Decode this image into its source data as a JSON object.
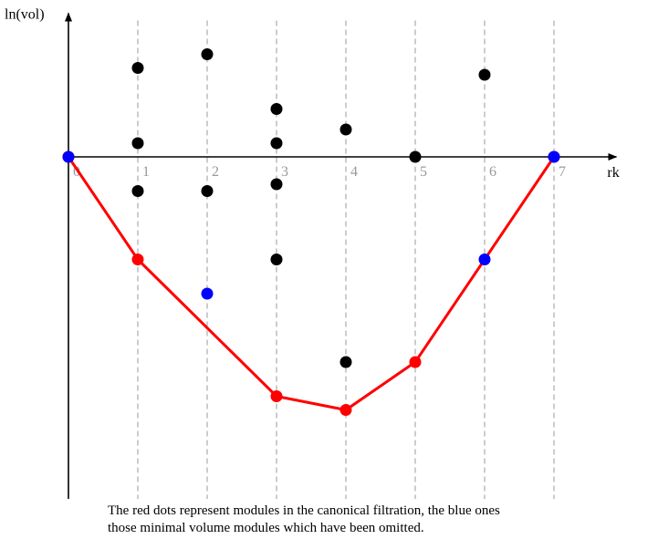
{
  "chart_data": {
    "type": "scatter",
    "xlabel": "rk",
    "ylabel": "ln(vol)",
    "xticks": [
      "0",
      "1",
      "2",
      "3",
      "4",
      "5",
      "6",
      "7"
    ],
    "xlim": [
      0,
      7.9
    ],
    "ylim": [
      -5,
      2.1
    ],
    "grid": "vertical dashed lines at each integer x",
    "colors": {
      "black": "#000000",
      "red": "#ff0000",
      "blue": "#0000ff",
      "grid": "#999999",
      "tick": "#999999"
    },
    "series": [
      {
        "color": "black",
        "points": [
          {
            "x": 1,
            "y": 1.3
          },
          {
            "x": 1,
            "y": 0.2
          },
          {
            "x": 1,
            "y": -0.5
          },
          {
            "x": 2,
            "y": 1.5
          },
          {
            "x": 2,
            "y": -0.5
          },
          {
            "x": 3,
            "y": 0.7
          },
          {
            "x": 3,
            "y": 0.2
          },
          {
            "x": 3,
            "y": -0.4
          },
          {
            "x": 3,
            "y": -1.5
          },
          {
            "x": 4,
            "y": 0.4
          },
          {
            "x": 4,
            "y": -3.0
          },
          {
            "x": 5,
            "y": 0.0
          },
          {
            "x": 6,
            "y": 1.2
          }
        ]
      },
      {
        "color": "red",
        "connected": true,
        "points": [
          {
            "x": 0,
            "y": 0.0
          },
          {
            "x": 1,
            "y": -1.5
          },
          {
            "x": 3,
            "y": -3.5
          },
          {
            "x": 4,
            "y": -3.7
          },
          {
            "x": 5,
            "y": -3.0
          },
          {
            "x": 7,
            "y": 0.0
          }
        ]
      },
      {
        "color": "blue",
        "points": [
          {
            "x": 0,
            "y": 0.0
          },
          {
            "x": 2,
            "y": -2.0
          },
          {
            "x": 6,
            "y": -1.5
          },
          {
            "x": 7,
            "y": 0.0
          }
        ]
      }
    ]
  },
  "caption": {
    "line1": "The red dots represent modules in the canonical filtration, the blue ones",
    "line2": "those minimal volume modules which have been omitted."
  }
}
